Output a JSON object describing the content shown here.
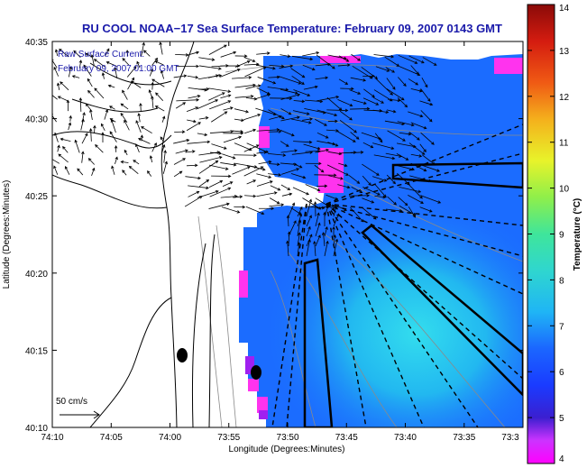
{
  "chart_data": {
    "type": "heatmap",
    "title": "RU COOL  NOAA−17  Sea Surface Temperature:  February 09, 2007 0143 GMT",
    "overlay_label": "Raw Surface Current:",
    "overlay_date": "February 09, 2007 01:00 GMT",
    "scale_label": "50 cm/s",
    "xlabel": "Longitude (Degrees:Minutes)",
    "ylabel": "Latitude (Degrees:Minutes)",
    "colorbar_label": "Temperature (°C)",
    "x_ticks": [
      {
        "value": -74.1667,
        "label": "74:10"
      },
      {
        "value": -74.0833,
        "label": "74:05"
      },
      {
        "value": -74.0,
        "label": "74:00"
      },
      {
        "value": -73.9167,
        "label": "73:55"
      },
      {
        "value": -73.8333,
        "label": "73:50"
      },
      {
        "value": -73.75,
        "label": "73:45"
      },
      {
        "value": -73.6667,
        "label": "73:40"
      },
      {
        "value": -73.5833,
        "label": "73:35"
      },
      {
        "value": -73.5,
        "label": "73:3"
      }
    ],
    "y_ticks": [
      {
        "value": 40.1667,
        "label": "40:10"
      },
      {
        "value": 40.25,
        "label": "40:15"
      },
      {
        "value": 40.3333,
        "label": "40:20"
      },
      {
        "value": 40.4167,
        "label": "40:25"
      },
      {
        "value": 40.5,
        "label": "40:30"
      },
      {
        "value": 40.5833,
        "label": "40:35"
      }
    ],
    "xlim": [
      -74.1667,
      -73.5
    ],
    "ylim": [
      40.1667,
      40.5833
    ],
    "colorbar": {
      "min": 4,
      "max": 14,
      "ticks": [
        4,
        5,
        6,
        7,
        8,
        9,
        10,
        11,
        12,
        13,
        14
      ]
    },
    "grid": false
  }
}
